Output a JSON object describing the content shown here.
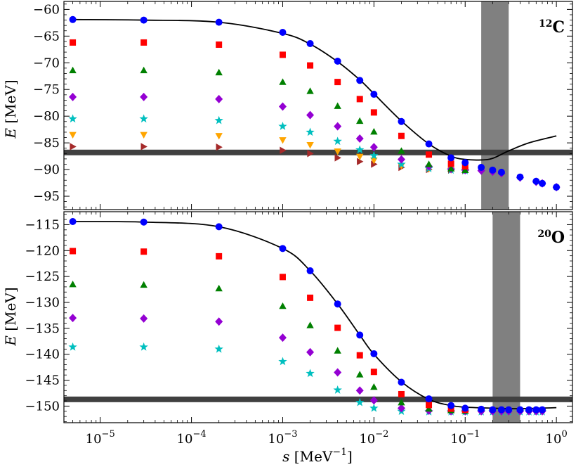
{
  "chart_data": [
    {
      "type": "scatter",
      "panel": "top",
      "nucleus_mass": "12",
      "nucleus_symbol": "C",
      "xscale": "log",
      "xlim": [
        4e-06,
        1.5
      ],
      "ylim": [
        -97.5,
        -58.5
      ],
      "yticks": [
        -60,
        -65,
        -70,
        -75,
        -80,
        -85,
        -90,
        -95
      ],
      "ytick_labels": [
        "−60",
        "−65",
        "−70",
        "−75",
        "−80",
        "−85",
        "−90",
        "−95"
      ],
      "ylabel_symbol": "E",
      "ylabel_unit": "[MeV]",
      "reference_line_y": -86.8,
      "shaded_band_x": [
        0.15,
        0.3
      ],
      "curve": {
        "x": [
          5e-06,
          3e-05,
          0.0002,
          0.001,
          0.002,
          0.004,
          0.007,
          0.01,
          0.02,
          0.04,
          0.07,
          0.1,
          0.15,
          0.2,
          0.3,
          0.5,
          1
        ],
        "y": [
          -61.9,
          -62.0,
          -62.4,
          -64.5,
          -66.5,
          -69.8,
          -73.2,
          -75.8,
          -80.9,
          -85.2,
          -87.5,
          -88.1,
          -88.2,
          -87.9,
          -86.5,
          -85.0,
          -83.7
        ]
      },
      "series": [
        {
          "name": "circle",
          "marker": "circle",
          "color": "#0000ff",
          "x": [
            5e-06,
            3e-05,
            0.0002,
            0.001,
            0.002,
            0.004,
            0.007,
            0.01,
            0.02,
            0.04,
            0.07,
            0.1,
            0.15,
            0.2,
            0.25,
            0.4,
            0.6,
            0.7,
            1
          ],
          "y": [
            -61.9,
            -62.0,
            -62.4,
            -64.3,
            -66.4,
            -69.7,
            -73.3,
            -75.9,
            -81.0,
            -85.2,
            -87.8,
            -88.7,
            -89.6,
            -90.1,
            -90.5,
            -91.4,
            -92.2,
            -92.6,
            -93.3
          ]
        },
        {
          "name": "square",
          "marker": "square",
          "color": "#ff0000",
          "x": [
            5e-06,
            3e-05,
            0.0002,
            0.001,
            0.002,
            0.004,
            0.007,
            0.01,
            0.02,
            0.04,
            0.07,
            0.1
          ],
          "y": [
            -66.2,
            -66.2,
            -66.6,
            -68.5,
            -70.5,
            -73.6,
            -76.8,
            -79.3,
            -83.7,
            -87.2,
            -88.9,
            -89.4
          ]
        },
        {
          "name": "triangle-up",
          "marker": "triangle-up",
          "color": "#008000",
          "x": [
            5e-06,
            3e-05,
            0.0002,
            0.001,
            0.002,
            0.004,
            0.007,
            0.01,
            0.02,
            0.04,
            0.07,
            0.1
          ],
          "y": [
            -71.4,
            -71.4,
            -71.8,
            -73.6,
            -75.3,
            -78.1,
            -80.9,
            -82.9,
            -86.5,
            -89.0,
            -89.8,
            -90.1
          ]
        },
        {
          "name": "diamond",
          "marker": "diamond",
          "color": "#9400d3",
          "x": [
            5e-06,
            3e-05,
            0.0002,
            0.001,
            0.002,
            0.004,
            0.007,
            0.01,
            0.02,
            0.04,
            0.07,
            0.1,
            0.15,
            0.2,
            0.25,
            0.4,
            0.6,
            0.7,
            1
          ],
          "y": [
            -76.4,
            -76.4,
            -76.8,
            -78.2,
            -79.8,
            -81.9,
            -84.2,
            -85.8,
            -88.1,
            -89.4,
            -89.9,
            -90.1,
            -90.2,
            -90.4,
            -90.7,
            -91.5,
            -92.3,
            -92.6,
            -93.3
          ]
        },
        {
          "name": "star",
          "marker": "star",
          "color": "#00bfbf",
          "x": [
            5e-06,
            3e-05,
            0.0002,
            0.001,
            0.002,
            0.004,
            0.007,
            0.01,
            0.02,
            0.04,
            0.07,
            0.1
          ],
          "y": [
            -80.5,
            -80.5,
            -80.8,
            -81.9,
            -83.0,
            -84.7,
            -86.3,
            -87.4,
            -89.0,
            -89.8,
            -90.1,
            -90.2
          ]
        },
        {
          "name": "triangle-down",
          "marker": "triangle-down",
          "color": "#ffa500",
          "x": [
            5e-06,
            3e-05,
            0.0002,
            0.001,
            0.002,
            0.004,
            0.007,
            0.01,
            0.02,
            0.04,
            0.07,
            0.1
          ],
          "y": [
            -83.5,
            -83.5,
            -83.7,
            -84.5,
            -85.4,
            -86.6,
            -87.6,
            -88.3,
            -89.3,
            -89.9,
            -90.1,
            -90.2
          ]
        },
        {
          "name": "triangle-right",
          "marker": "triangle-right",
          "color": "#a52a2a",
          "x": [
            5e-06,
            3e-05,
            0.0002,
            0.001,
            0.002,
            0.004,
            0.007,
            0.01,
            0.02,
            0.04,
            0.07,
            0.1
          ],
          "y": [
            -85.7,
            -85.7,
            -85.8,
            -86.4,
            -87.0,
            -87.8,
            -88.5,
            -89.0,
            -89.6,
            -90.0,
            -90.1,
            -90.2
          ]
        }
      ]
    },
    {
      "type": "scatter",
      "panel": "bottom",
      "nucleus_mass": "20",
      "nucleus_symbol": "O",
      "xscale": "log",
      "xlim": [
        4e-06,
        1.5
      ],
      "ylim": [
        -153.2,
        -112.5
      ],
      "yticks": [
        -115,
        -120,
        -125,
        -130,
        -135,
        -140,
        -145,
        -150
      ],
      "ytick_labels": [
        "−115",
        "−120",
        "−125",
        "−130",
        "−135",
        "−140",
        "−145",
        "−150"
      ],
      "ylabel_symbol": "E",
      "ylabel_unit": "[MeV]",
      "xlabel_symbol": "s",
      "xlabel_unit": "[MeV",
      "xlabel_exp": "−1",
      "xlabel_close": "]",
      "xtick_values": [
        1e-05,
        0.0001,
        0.001,
        0.01,
        0.1,
        1
      ],
      "xtick_bases": [
        "10",
        "10",
        "10",
        "10",
        "10",
        "10"
      ],
      "xtick_exps": [
        "−5",
        "−4",
        "−3",
        "−2",
        "−1",
        "0"
      ],
      "reference_line_y": -148.7,
      "shaded_band_x": [
        0.2,
        0.4
      ],
      "curve": {
        "x": [
          5e-06,
          3e-05,
          0.0002,
          0.001,
          0.002,
          0.004,
          0.007,
          0.01,
          0.02,
          0.04,
          0.07,
          0.1,
          0.2,
          0.4,
          1
        ],
        "y": [
          -114.4,
          -114.5,
          -115.4,
          -119.6,
          -123.9,
          -130.3,
          -136.3,
          -140.0,
          -145.3,
          -148.7,
          -149.9,
          -150.2,
          -150.4,
          -150.5,
          -150.3
        ]
      },
      "series": [
        {
          "name": "circle",
          "marker": "circle",
          "color": "#0000ff",
          "x": [
            5e-06,
            3e-05,
            0.0002,
            0.001,
            0.002,
            0.004,
            0.007,
            0.01,
            0.02,
            0.04,
            0.07,
            0.1,
            0.15,
            0.2,
            0.25,
            0.3,
            0.4,
            0.5,
            0.6,
            0.7
          ],
          "y": [
            -114.4,
            -114.5,
            -115.4,
            -119.6,
            -123.9,
            -130.3,
            -136.3,
            -139.9,
            -145.4,
            -148.6,
            -149.9,
            -150.4,
            -150.6,
            -150.7,
            -150.7,
            -150.7,
            -150.7,
            -150.7,
            -150.7,
            -150.7
          ]
        },
        {
          "name": "square",
          "marker": "square",
          "color": "#ff0000",
          "x": [
            5e-06,
            3e-05,
            0.0002,
            0.001,
            0.002,
            0.004,
            0.007,
            0.01,
            0.02,
            0.04,
            0.07,
            0.1
          ],
          "y": [
            -120.1,
            -120.2,
            -121.1,
            -125.1,
            -129.1,
            -134.9,
            -140.2,
            -143.4,
            -147.7,
            -149.8,
            -150.5,
            -150.7
          ]
        },
        {
          "name": "triangle-up",
          "marker": "triangle-up",
          "color": "#008000",
          "x": [
            5e-06,
            3e-05,
            0.0002,
            0.001,
            0.002,
            0.004,
            0.007,
            0.01,
            0.02,
            0.04,
            0.07,
            0.1
          ],
          "y": [
            -126.5,
            -126.6,
            -127.3,
            -130.7,
            -134.4,
            -139.3,
            -143.9,
            -146.3,
            -149.3,
            -150.5,
            -150.8,
            -150.9
          ]
        },
        {
          "name": "diamond",
          "marker": "diamond",
          "color": "#9400d3",
          "x": [
            5e-06,
            3e-05,
            0.0002,
            0.001,
            0.002,
            0.004,
            0.007,
            0.01,
            0.02,
            0.04,
            0.07,
            0.1,
            0.15,
            0.2,
            0.25,
            0.3,
            0.4,
            0.5,
            0.6,
            0.7
          ],
          "y": [
            -133.0,
            -133.1,
            -133.7,
            -136.8,
            -139.6,
            -143.5,
            -147.0,
            -148.9,
            -150.4,
            -150.9,
            -151.0,
            -151.0,
            -151.0,
            -151.0,
            -151.0,
            -151.0,
            -151.0,
            -151.0,
            -151.0,
            -151.0
          ]
        },
        {
          "name": "star",
          "marker": "star",
          "color": "#00bfbf",
          "x": [
            5e-06,
            3e-05,
            0.0002,
            0.001,
            0.002,
            0.004,
            0.007,
            0.01,
            0.02,
            0.04,
            0.07,
            0.1,
            0.15,
            0.2,
            0.25,
            0.3,
            0.4,
            0.5,
            0.6,
            0.7
          ],
          "y": [
            -138.6,
            -138.6,
            -139.0,
            -141.4,
            -143.7,
            -146.9,
            -149.3,
            -150.4,
            -151.0,
            -151.1,
            -151.1,
            -151.1,
            -151.1,
            -151.1,
            -151.1,
            -151.1,
            -151.1,
            -151.1,
            -151.1,
            -151.1
          ]
        }
      ]
    }
  ]
}
